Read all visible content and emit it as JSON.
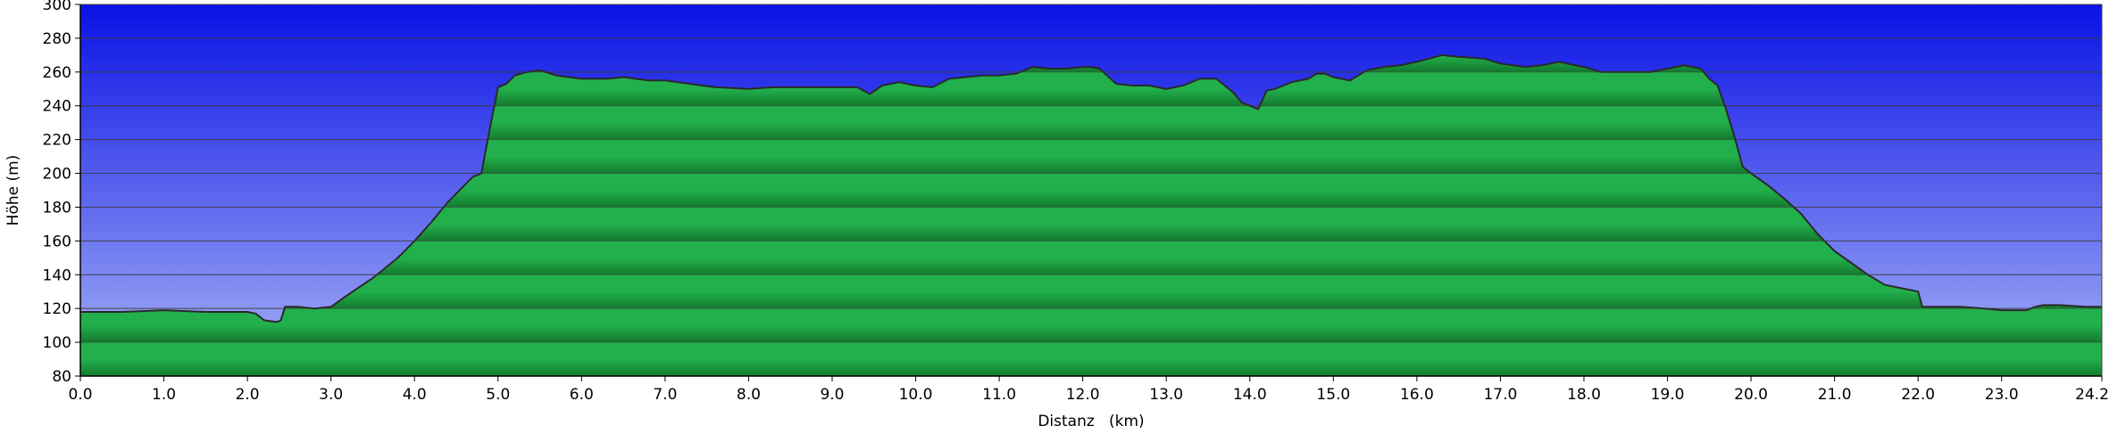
{
  "chart_data": {
    "type": "area",
    "title": "",
    "xlabel": "Distanz   (km)",
    "ylabel": "Höhe (m)",
    "xlim": [
      0,
      24.2
    ],
    "ylim": [
      80,
      300
    ],
    "x_ticks": [
      "0.0",
      "1.0",
      "2.0",
      "3.0",
      "4.0",
      "5.0",
      "6.0",
      "7.0",
      "8.0",
      "9.0",
      "10.0",
      "11.0",
      "12.0",
      "13.0",
      "14.0",
      "15.0",
      "16.0",
      "17.0",
      "18.0",
      "19.0",
      "20.0",
      "21.0",
      "22.0",
      "23.0",
      "24.2"
    ],
    "y_ticks": [
      "80",
      "100",
      "120",
      "140",
      "160",
      "180",
      "200",
      "220",
      "240",
      "260",
      "280",
      "300"
    ],
    "grid": "horizontal",
    "colors": {
      "sky_top": "#0a12e6",
      "sky_bottom": "#a8b4f6",
      "fill_light": "#22b04c",
      "fill_dark": "#137a2e",
      "line": "#2a2a2a",
      "grid": "#3c3c3c"
    },
    "series": [
      {
        "x": [
          0.0,
          0.5,
          1.0,
          1.5,
          2.0,
          2.1,
          2.2,
          2.35,
          2.4,
          2.45,
          2.6,
          2.8,
          3.0,
          3.2,
          3.5,
          3.8,
          4.0,
          4.2,
          4.4,
          4.6,
          4.7,
          4.8,
          4.9,
          5.0,
          5.1,
          5.2,
          5.35,
          5.5,
          5.7,
          6.0,
          6.3,
          6.5,
          6.8,
          7.0,
          7.3,
          7.6,
          8.0,
          8.3,
          8.6,
          9.0,
          9.3,
          9.45,
          9.6,
          9.8,
          10.0,
          10.2,
          10.4,
          10.6,
          10.8,
          11.0,
          11.2,
          11.4,
          11.6,
          11.8,
          12.0,
          12.1,
          12.2,
          12.4,
          12.6,
          12.8,
          13.0,
          13.2,
          13.4,
          13.6,
          13.8,
          13.9,
          14.0,
          14.1,
          14.2,
          14.3,
          14.5,
          14.7,
          14.8,
          14.9,
          15.0,
          15.2,
          15.4,
          15.6,
          15.8,
          16.0,
          16.3,
          16.5,
          16.8,
          17.0,
          17.3,
          17.5,
          17.7,
          18.0,
          18.2,
          18.5,
          18.8,
          19.0,
          19.2,
          19.4,
          19.5,
          19.6,
          19.7,
          19.8,
          19.9,
          20.0,
          20.2,
          20.4,
          20.6,
          20.8,
          21.0,
          21.2,
          21.4,
          21.6,
          21.8,
          22.0,
          22.05,
          22.2,
          22.5,
          22.8,
          23.0,
          23.3,
          23.4,
          23.5,
          23.7,
          24.0,
          24.2
        ],
        "y": [
          118,
          118,
          119,
          118,
          118,
          117,
          113,
          112,
          113,
          121,
          121,
          120,
          121,
          128,
          138,
          150,
          160,
          171,
          183,
          193,
          198,
          200,
          226,
          251,
          253,
          258,
          260,
          261,
          258,
          256,
          256,
          257,
          255,
          255,
          253,
          251,
          250,
          251,
          251,
          251,
          251,
          247,
          252,
          254,
          252,
          251,
          256,
          257,
          258,
          258,
          259,
          263,
          262,
          262,
          263,
          263,
          262,
          253,
          252,
          252,
          250,
          252,
          256,
          256,
          248,
          242,
          240,
          238,
          249,
          250,
          254,
          256,
          259,
          259,
          257,
          255,
          261,
          263,
          264,
          266,
          270,
          269,
          268,
          265,
          263,
          264,
          266,
          263,
          260,
          260,
          260,
          262,
          264,
          262,
          256,
          252,
          238,
          222,
          204,
          200,
          193,
          185,
          176,
          164,
          154,
          147,
          140,
          134,
          132,
          130,
          121,
          121,
          121,
          120,
          119,
          119,
          121,
          122,
          122,
          121,
          121
        ]
      }
    ]
  }
}
